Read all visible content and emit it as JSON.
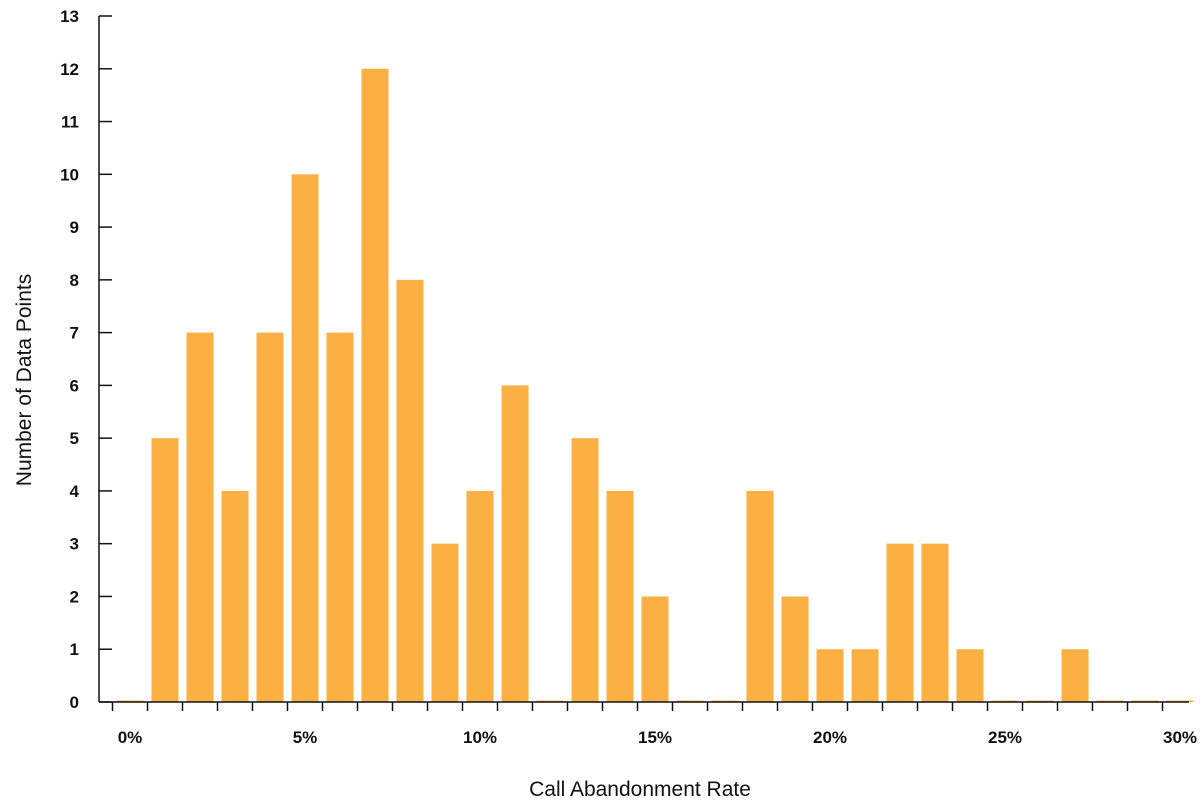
{
  "chart_data": {
    "type": "bar",
    "xlabel": "Call Abandonment Rate",
    "ylabel": "Number of Data Points",
    "ylim": [
      0,
      13
    ],
    "yticks": [
      "0",
      "1",
      "2",
      "3",
      "4",
      "5",
      "6",
      "7",
      "8",
      "9",
      "10",
      "11",
      "12",
      "13"
    ],
    "x_tick_labels": [
      "0%",
      "5%",
      "10%",
      "15%",
      "20%",
      "25%",
      "30%"
    ],
    "xlim": [
      0,
      30
    ],
    "x": [
      0,
      1,
      2,
      3,
      4,
      5,
      6,
      7,
      8,
      9,
      10,
      11,
      12,
      13,
      14,
      15,
      16,
      17,
      18,
      19,
      20,
      21,
      22,
      23,
      24,
      25,
      26,
      27,
      28,
      29,
      30
    ],
    "values": [
      0,
      5,
      7,
      4,
      7,
      10,
      7,
      12,
      8,
      3,
      4,
      6,
      0,
      5,
      4,
      2,
      0,
      0,
      4,
      2,
      1,
      1,
      3,
      3,
      1,
      0,
      0,
      1,
      0,
      0,
      0
    ],
    "bar_color": "#FAB042",
    "axis_color": "#111111",
    "grid": false
  }
}
